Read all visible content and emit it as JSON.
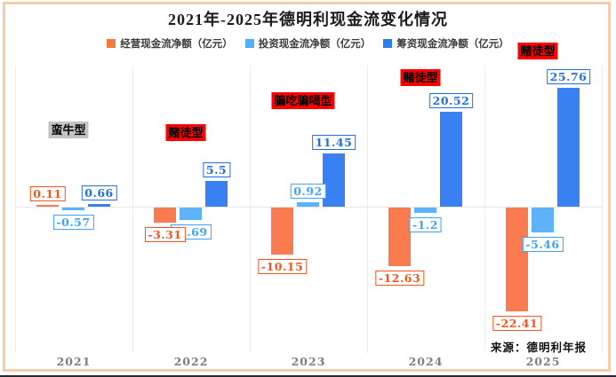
{
  "title": "2021年-2025年德明利现金流变化情况",
  "source": "来源：德明利年报",
  "legend": {
    "items": [
      {
        "label": "经营现金流净额（亿元）",
        "color": "#F4793D"
      },
      {
        "label": "投资现金流净额（亿元）",
        "color": "#52AEF5"
      },
      {
        "label": "筹资现金流净额（亿元）",
        "color": "#2E7CE8"
      }
    ]
  },
  "chart_data": {
    "type": "bar",
    "title": "2021年-2025年德明利现金流变化情况",
    "categories": [
      "2021",
      "2022",
      "2023",
      "2024",
      "2025"
    ],
    "series": [
      {
        "name": "经营现金流净额（亿元）",
        "color": "#FA7B50",
        "label_color": "#F4541D",
        "values": [
          0.11,
          -3.31,
          -10.15,
          -12.63,
          -22.41
        ]
      },
      {
        "name": "投资现金流净额（亿元）",
        "color": "#5CB3F9",
        "label_color": "#3FA2F5",
        "values": [
          -0.57,
          -2.69,
          0.92,
          -1.2,
          -5.46
        ]
      },
      {
        "name": "筹资现金流净额（亿元）",
        "color": "#3981F2",
        "label_color": "#1F6FE0",
        "values": [
          0.66,
          5.5,
          11.45,
          20.52,
          25.76
        ]
      }
    ],
    "annotations": [
      {
        "year": "2021",
        "text": "蛮牛型",
        "bg": "#C4C4C4",
        "y": 137
      },
      {
        "year": "2022",
        "text": "赌徒型",
        "bg": "#FE0000",
        "y": 140
      },
      {
        "year": "2023",
        "text": "骗吃骗喝型",
        "bg": "#FE0000",
        "y": 104
      },
      {
        "year": "2024",
        "text": "赌徒型",
        "bg": "#FE0000",
        "y": 78
      },
      {
        "year": "2025",
        "text": "赌徒型",
        "bg": "#FE0000",
        "y": 48
      }
    ],
    "ylim": [
      -25,
      30
    ],
    "grid": "vertical-separators",
    "legend_position": "top",
    "value_labels": "boxed, colored per series",
    "source_note": "来源：德明利年报"
  },
  "frame": {
    "border_color": "#F6CBA9"
  },
  "axis": {
    "gridline_color": "#ECECEC",
    "zero_line_color": "#E7E7E7",
    "year_label_color": "#7E7E7E"
  }
}
